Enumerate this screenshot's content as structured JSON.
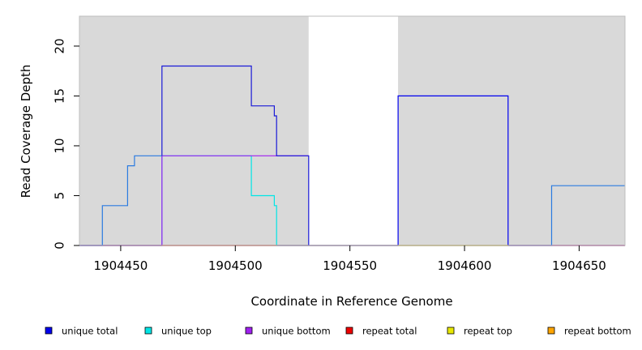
{
  "chart_data": {
    "type": "line",
    "title": "",
    "xlabel": "Coordinate in Reference Genome",
    "ylabel": "Read Coverage Depth",
    "xlim": [
      1904432,
      1904670
    ],
    "ylim": [
      0,
      23
    ],
    "x_ticks": [
      1904450,
      1904500,
      1904550,
      1904600,
      1904650
    ],
    "x_tick_labels": [
      "1904450",
      "1904500",
      "1904550",
      "1904600",
      "1904650"
    ],
    "y_ticks": [
      0,
      5,
      10,
      15,
      20
    ],
    "y_tick_labels": [
      "0",
      "5",
      "10",
      "15",
      "20"
    ],
    "background_color": "#d9d9d9",
    "uncovered_regions": [
      [
        1904532,
        1904571
      ]
    ],
    "legend_position": "bottom",
    "series": [
      {
        "name": "unique total",
        "color": "#0000ee",
        "points": [
          [
            1904432,
            0
          ],
          [
            1904532,
            0
          ],
          [
            1904571,
            0
          ],
          [
            1904571,
            15
          ],
          [
            1904619,
            15
          ],
          [
            1904619,
            0
          ],
          [
            1904670,
            0
          ]
        ]
      },
      {
        "name": "unique top",
        "color": "#00e5e5",
        "points": [
          [
            1904432,
            0
          ],
          [
            1904468,
            0
          ],
          [
            1904468,
            9
          ],
          [
            1904507,
            9
          ],
          [
            1904507,
            5
          ],
          [
            1904517,
            5
          ],
          [
            1904517,
            4
          ],
          [
            1904518,
            4
          ],
          [
            1904518,
            0
          ],
          [
            1904532,
            0
          ],
          [
            1904571,
            0
          ],
          [
            1904619,
            0
          ]
        ]
      },
      {
        "name": "unique bottom",
        "color": "#a020f0",
        "points": [
          [
            1904432,
            0
          ],
          [
            1904468,
            0
          ],
          [
            1904468,
            9
          ],
          [
            1904532,
            9
          ]
        ]
      },
      {
        "name": "repeat total",
        "color": "#ee0000",
        "points": [
          [
            1904432,
            0
          ],
          [
            1904532,
            0
          ],
          [
            1904619,
            0
          ],
          [
            1904670,
            0
          ]
        ]
      },
      {
        "name": "repeat top",
        "color": "#e8e800",
        "points": [
          [
            1904571,
            0
          ],
          [
            1904619,
            0
          ]
        ]
      },
      {
        "name": "repeat bottom",
        "color": "#ffa500",
        "points": [
          [
            1904468,
            0
          ],
          [
            1904518,
            0
          ]
        ]
      },
      {
        "name": "",
        "color": "#2b7be0",
        "points": [
          [
            1904432,
            0
          ],
          [
            1904442,
            0
          ],
          [
            1904442,
            4
          ],
          [
            1904453,
            4
          ],
          [
            1904453,
            8
          ],
          [
            1904456,
            8
          ],
          [
            1904456,
            9
          ],
          [
            1904468,
            9
          ]
        ]
      },
      {
        "name": "",
        "color": "#1a1ad8",
        "points": [
          [
            1904468,
            9
          ],
          [
            1904468,
            18
          ],
          [
            1904507,
            18
          ],
          [
            1904507,
            14
          ],
          [
            1904517,
            14
          ],
          [
            1904517,
            13
          ],
          [
            1904518,
            13
          ],
          [
            1904518,
            9
          ],
          [
            1904532,
            9
          ],
          [
            1904532,
            0
          ]
        ]
      },
      {
        "name": "",
        "color": "#2b7be0",
        "points": [
          [
            1904619,
            0
          ],
          [
            1904638,
            0
          ],
          [
            1904638,
            6
          ],
          [
            1904670,
            6
          ]
        ]
      }
    ]
  }
}
